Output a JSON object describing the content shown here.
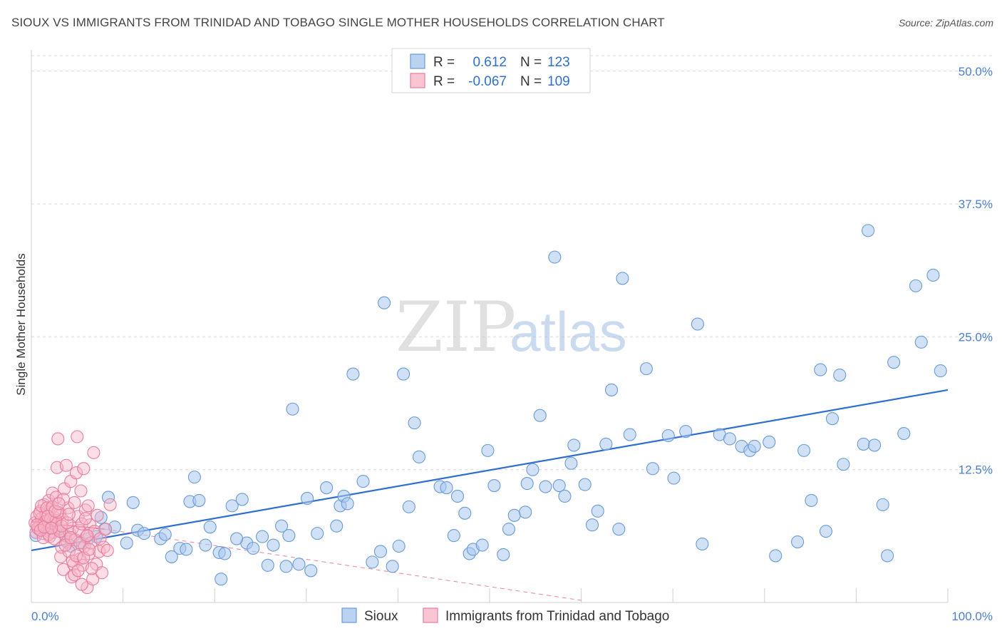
{
  "title": "SIOUX VS IMMIGRANTS FROM TRINIDAD AND TOBAGO SINGLE MOTHER HOUSEHOLDS CORRELATION CHART",
  "source": "Source: ZipAtlas.com",
  "watermark": {
    "zip": "ZIP",
    "atlas": "atlas"
  },
  "colors": {
    "blue_fill": "#a9c8ee",
    "blue_stroke": "#6a9ad8",
    "blue_line": "#2f6fcf",
    "pink_fill": "#f6b6c8",
    "pink_stroke": "#e77d9d",
    "pink_line": "#e0507a",
    "tick_text": "#4a7fd0",
    "grid": "#d9d9d9"
  },
  "stats_legend": [
    {
      "r_label": "R =",
      "r_value": "0.612",
      "n_label": "N =",
      "n_value": "123"
    },
    {
      "r_label": "R =",
      "r_value": "-0.067",
      "n_label": "N =",
      "n_value": "109"
    }
  ],
  "chart_data": {
    "type": "scatter",
    "title": "SIOUX VS IMMIGRANTS FROM TRINIDAD AND TOBAGO SINGLE MOTHER HOUSEHOLDS CORRELATION CHART",
    "xlabel": "",
    "ylabel": "Single Mother Households",
    "xlim": [
      0,
      100
    ],
    "ylim": [
      0,
      52
    ],
    "x_tick_labels": [
      "0.0%",
      "100.0%"
    ],
    "y_ticks": [
      12.5,
      25.0,
      37.5,
      50.0
    ],
    "y_tick_labels": [
      "12.5%",
      "25.0%",
      "37.5%",
      "50.0%"
    ],
    "grid": true,
    "series": [
      {
        "name": "Sioux",
        "legend_label": "Sioux",
        "r": 0.612,
        "n": 123,
        "trend": {
          "x": [
            0,
            100
          ],
          "y": [
            4.9,
            20.0
          ]
        },
        "points": [
          [
            0.5,
            6.3
          ],
          [
            1.3,
            6.9
          ],
          [
            2.2,
            7.2
          ],
          [
            2.8,
            6.9
          ],
          [
            3.6,
            6.4
          ],
          [
            4.3,
            5.3
          ],
          [
            5.6,
            5.6
          ],
          [
            6.2,
            6.0
          ],
          [
            7.1,
            6.2
          ],
          [
            8.0,
            6.9
          ],
          [
            7.6,
            8.0
          ],
          [
            9.1,
            7.1
          ],
          [
            10.4,
            5.6
          ],
          [
            11.1,
            9.4
          ],
          [
            8.4,
            9.9
          ],
          [
            11.6,
            6.8
          ],
          [
            12.3,
            6.5
          ],
          [
            14.1,
            6.0
          ],
          [
            14.6,
            6.4
          ],
          [
            16.2,
            5.1
          ],
          [
            15.3,
            4.3
          ],
          [
            16.9,
            5.0
          ],
          [
            17.3,
            9.5
          ],
          [
            17.8,
            11.8
          ],
          [
            18.3,
            9.6
          ],
          [
            19.5,
            7.1
          ],
          [
            19.0,
            5.4
          ],
          [
            20.5,
            4.7
          ],
          [
            21.1,
            4.6
          ],
          [
            20.7,
            2.2
          ],
          [
            21.9,
            9.1
          ],
          [
            23.0,
            9.7
          ],
          [
            23.5,
            5.6
          ],
          [
            24.2,
            5.1
          ],
          [
            22.4,
            6.0
          ],
          [
            25.2,
            6.2
          ],
          [
            25.8,
            3.5
          ],
          [
            26.4,
            5.4
          ],
          [
            27.3,
            7.2
          ],
          [
            27.8,
            3.4
          ],
          [
            28.1,
            6.3
          ],
          [
            28.5,
            18.2
          ],
          [
            29.2,
            3.6
          ],
          [
            30.1,
            9.8
          ],
          [
            30.5,
            3.0
          ],
          [
            31.2,
            6.5
          ],
          [
            32.2,
            10.8
          ],
          [
            33.3,
            7.2
          ],
          [
            33.7,
            9.1
          ],
          [
            34.1,
            10.0
          ],
          [
            34.5,
            9.3
          ],
          [
            35.1,
            21.5
          ],
          [
            36.2,
            11.4
          ],
          [
            37.2,
            3.8
          ],
          [
            38.1,
            4.8
          ],
          [
            38.5,
            28.2
          ],
          [
            39.4,
            3.4
          ],
          [
            40.1,
            5.3
          ],
          [
            40.6,
            21.5
          ],
          [
            41.2,
            9.0
          ],
          [
            41.8,
            16.9
          ],
          [
            42.3,
            13.7
          ],
          [
            44.6,
            10.9
          ],
          [
            45.3,
            10.8
          ],
          [
            46.1,
            6.3
          ],
          [
            46.5,
            10.0
          ],
          [
            47.3,
            8.4
          ],
          [
            47.8,
            4.6
          ],
          [
            48.2,
            5.0
          ],
          [
            49.2,
            5.4
          ],
          [
            49.8,
            14.3
          ],
          [
            50.5,
            11.0
          ],
          [
            51.5,
            4.5
          ],
          [
            52.1,
            6.9
          ],
          [
            52.7,
            8.2
          ],
          [
            53.9,
            8.5
          ],
          [
            54.1,
            11.2
          ],
          [
            54.7,
            12.5
          ],
          [
            55.5,
            17.6
          ],
          [
            56.1,
            10.9
          ],
          [
            57.1,
            32.5
          ],
          [
            57.6,
            11.0
          ],
          [
            58.2,
            10.0
          ],
          [
            58.9,
            13.1
          ],
          [
            59.2,
            14.8
          ],
          [
            60.4,
            11.1
          ],
          [
            61.2,
            7.3
          ],
          [
            61.8,
            8.6
          ],
          [
            62.7,
            14.9
          ],
          [
            63.3,
            20.0
          ],
          [
            64.1,
            6.9
          ],
          [
            64.5,
            30.5
          ],
          [
            65.3,
            15.8
          ],
          [
            67.1,
            22.0
          ],
          [
            67.8,
            12.6
          ],
          [
            69.5,
            15.7
          ],
          [
            70.1,
            11.7
          ],
          [
            71.4,
            16.1
          ],
          [
            72.7,
            26.2
          ],
          [
            73.2,
            5.5
          ],
          [
            75.1,
            15.8
          ],
          [
            76.2,
            15.4
          ],
          [
            77.5,
            14.7
          ],
          [
            78.4,
            14.3
          ],
          [
            78.9,
            14.7
          ],
          [
            80.5,
            15.1
          ],
          [
            81.2,
            4.4
          ],
          [
            83.6,
            5.7
          ],
          [
            84.3,
            14.3
          ],
          [
            85.1,
            9.6
          ],
          [
            86.1,
            21.9
          ],
          [
            86.7,
            6.7
          ],
          [
            87.4,
            17.3
          ],
          [
            88.2,
            21.4
          ],
          [
            88.6,
            13.0
          ],
          [
            90.8,
            14.9
          ],
          [
            91.3,
            35.0
          ],
          [
            92.0,
            14.8
          ],
          [
            92.9,
            9.2
          ],
          [
            93.4,
            4.4
          ],
          [
            94.1,
            22.6
          ],
          [
            95.2,
            15.9
          ],
          [
            96.5,
            29.8
          ],
          [
            97.1,
            24.5
          ],
          [
            98.4,
            30.8
          ],
          [
            99.2,
            21.8
          ]
        ]
      },
      {
        "name": "Immigrants from Trinidad and Tobago",
        "legend_label": "Immigrants from Trinidad and Tobago",
        "r": -0.067,
        "n": 109,
        "trend": {
          "x": [
            0,
            8
          ],
          "y": [
            7.6,
            6.9
          ]
        },
        "trend_dashed": {
          "x": [
            8,
            60
          ],
          "y": [
            6.9,
            0.2
          ]
        },
        "points": [
          [
            0.4,
            7.5
          ],
          [
            0.6,
            8.1
          ],
          [
            0.8,
            6.9
          ],
          [
            0.9,
            7.2
          ],
          [
            1.0,
            8.6
          ],
          [
            1.1,
            7.9
          ],
          [
            1.2,
            6.5
          ],
          [
            1.3,
            7.4
          ],
          [
            1.4,
            9.2
          ],
          [
            1.5,
            6.8
          ],
          [
            1.6,
            8.3
          ],
          [
            1.7,
            7.1
          ],
          [
            1.8,
            7.7
          ],
          [
            1.9,
            9.6
          ],
          [
            2.0,
            6.2
          ],
          [
            2.1,
            8.8
          ],
          [
            2.2,
            7.5
          ],
          [
            2.3,
            10.3
          ],
          [
            2.4,
            6.6
          ],
          [
            2.5,
            8.0
          ],
          [
            2.6,
            7.3
          ],
          [
            2.7,
            9.9
          ],
          [
            2.8,
            12.7
          ],
          [
            2.9,
            15.4
          ],
          [
            3.0,
            6.9
          ],
          [
            3.1,
            8.4
          ],
          [
            3.2,
            4.3
          ],
          [
            3.3,
            5.2
          ],
          [
            3.4,
            7.8
          ],
          [
            3.5,
            3.1
          ],
          [
            3.6,
            10.7
          ],
          [
            3.7,
            6.3
          ],
          [
            3.8,
            12.9
          ],
          [
            3.9,
            5.7
          ],
          [
            4.0,
            8.9
          ],
          [
            4.1,
            4.8
          ],
          [
            4.2,
            6.5
          ],
          [
            4.3,
            11.4
          ],
          [
            4.4,
            2.4
          ],
          [
            4.5,
            7.0
          ],
          [
            4.6,
            3.6
          ],
          [
            4.7,
            9.4
          ],
          [
            4.8,
            5.9
          ],
          [
            4.9,
            12.2
          ],
          [
            5.0,
            15.6
          ],
          [
            5.1,
            8.1
          ],
          [
            5.2,
            6.8
          ],
          [
            5.3,
            4.1
          ],
          [
            5.4,
            10.5
          ],
          [
            5.5,
            7.4
          ],
          [
            5.6,
            3.5
          ],
          [
            5.7,
            12.6
          ],
          [
            5.8,
            5.3
          ],
          [
            5.9,
            8.7
          ],
          [
            6.0,
            6.2
          ],
          [
            6.1,
            1.4
          ],
          [
            6.2,
            9.1
          ],
          [
            6.3,
            4.6
          ],
          [
            6.4,
            7.3
          ],
          [
            6.5,
            5.6
          ],
          [
            6.7,
            2.2
          ],
          [
            6.8,
            14.1
          ],
          [
            6.9,
            6.7
          ],
          [
            7.1,
            3.6
          ],
          [
            7.2,
            8.2
          ],
          [
            7.4,
            4.8
          ],
          [
            7.5,
            6.0
          ],
          [
            7.7,
            2.8
          ],
          [
            7.9,
            5.2
          ],
          [
            8.1,
            6.9
          ],
          [
            8.3,
            4.9
          ],
          [
            8.6,
            9.2
          ],
          [
            0.5,
            6.6
          ],
          [
            0.7,
            7.0
          ],
          [
            0.9,
            8.4
          ],
          [
            1.1,
            9.1
          ],
          [
            1.3,
            6.1
          ],
          [
            1.5,
            7.6
          ],
          [
            1.7,
            8.9
          ],
          [
            1.9,
            6.4
          ],
          [
            2.1,
            7.9
          ],
          [
            2.3,
            9.0
          ],
          [
            2.5,
            6.0
          ],
          [
            2.7,
            7.7
          ],
          [
            2.9,
            8.5
          ],
          [
            3.1,
            6.7
          ],
          [
            3.3,
            7.2
          ],
          [
            3.5,
            9.7
          ],
          [
            3.7,
            5.4
          ],
          [
            3.9,
            7.5
          ],
          [
            4.1,
            8.3
          ],
          [
            4.3,
            6.1
          ],
          [
            4.5,
            3.9
          ],
          [
            4.7,
            2.6
          ],
          [
            4.9,
            4.4
          ],
          [
            5.1,
            3.0
          ],
          [
            5.3,
            5.6
          ],
          [
            5.5,
            1.7
          ],
          [
            5.7,
            4.2
          ],
          [
            5.9,
            7.9
          ],
          [
            6.1,
            6.3
          ],
          [
            6.3,
            5.0
          ],
          [
            6.6,
            3.2
          ],
          [
            0.6,
            7.3
          ],
          [
            1.0,
            6.8
          ],
          [
            1.4,
            7.1
          ],
          [
            1.8,
            8.1
          ],
          [
            2.2,
            7.0
          ],
          [
            2.6,
            8.6
          ],
          [
            3.0,
            9.3
          ]
        ]
      }
    ]
  }
}
